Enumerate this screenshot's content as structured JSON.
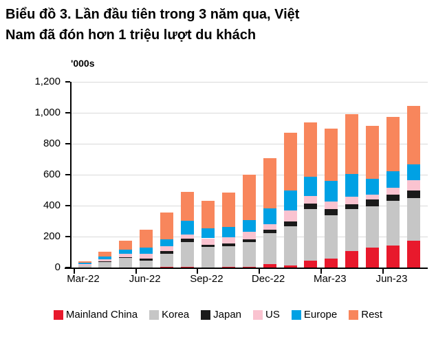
{
  "title": {
    "line1": "Biểu đồ 3. Lần đầu tiên trong 3 năm qua, Việt",
    "line2": "Nam đã đón hơn 1 triệu lượt du khách"
  },
  "chart_data": {
    "type": "bar",
    "stacked": true,
    "title": "Biểu đồ 3. Lần đầu tiên trong 3 năm qua, Việt Nam đã đón hơn 1 triệu lượt du khách",
    "ylabel": "'000s",
    "xlabel": "",
    "ylim": [
      0,
      1200
    ],
    "grid": true,
    "legend_position": "bottom",
    "y_ticks": [
      {
        "value": 0,
        "label": "0"
      },
      {
        "value": 200,
        "label": "200"
      },
      {
        "value": 400,
        "label": "400"
      },
      {
        "value": 600,
        "label": "600"
      },
      {
        "value": 800,
        "label": "800"
      },
      {
        "value": 1000,
        "label": "1,000"
      },
      {
        "value": 1200,
        "label": "1,200"
      }
    ],
    "categories": [
      "Mar-22",
      "Apr-22",
      "May-22",
      "Jun-22",
      "Jul-22",
      "Aug-22",
      "Sep-22",
      "Oct-22",
      "Nov-22",
      "Dec-22",
      "Jan-23",
      "Feb-23",
      "Mar-23",
      "Apr-23",
      "May-23",
      "Jun-23",
      "Jul-23"
    ],
    "x_tick_labels": [
      "Mar-22",
      "Jun-22",
      "Sep-22",
      "Dec-22",
      "Mar-23",
      "Jun-23"
    ],
    "x_tick_label_month_indexes": [
      0,
      3,
      6,
      9,
      12,
      15
    ],
    "series": [
      {
        "name": "Mainland China",
        "color": "#e8192c",
        "values": [
          1,
          1,
          2,
          2,
          3,
          3,
          2,
          3,
          4,
          22,
          15,
          44,
          58,
          107,
          129,
          141,
          173
        ]
      },
      {
        "name": "Korea",
        "color": "#c6c6c6",
        "values": [
          12,
          35,
          62,
          41,
          86,
          163,
          130,
          134,
          160,
          200,
          250,
          336,
          278,
          269,
          266,
          290,
          274
        ]
      },
      {
        "name": "Japan",
        "color": "#1a1a1a",
        "values": [
          2,
          4,
          4,
          15,
          18,
          19,
          15,
          20,
          18,
          22,
          33,
          34,
          41,
          34,
          45,
          40,
          52
        ]
      },
      {
        "name": "US",
        "color": "#fac3d0",
        "values": [
          9,
          12,
          20,
          31,
          30,
          30,
          42,
          37,
          50,
          37,
          70,
          48,
          51,
          47,
          32,
          45,
          66
        ]
      },
      {
        "name": "Europe",
        "color": "#00a1e4",
        "values": [
          8,
          20,
          28,
          40,
          45,
          87,
          66,
          70,
          74,
          100,
          130,
          123,
          133,
          148,
          101,
          105,
          100
        ]
      },
      {
        "name": "Rest",
        "color": "#f8865c",
        "values": [
          10,
          29,
          57,
          114,
          172,
          185,
          175,
          219,
          294,
          327,
          372,
          355,
          339,
          385,
          344,
          354,
          380
        ]
      }
    ],
    "totals": [
      42,
      101,
      173,
      243,
      354,
      487,
      430,
      483,
      600,
      708,
      870,
      940,
      900,
      990,
      917,
      975,
      1045
    ],
    "colors": {
      "grid": "#d9d9d9",
      "axis": "#000000",
      "text": "#000000",
      "background": "#ffffff"
    }
  }
}
